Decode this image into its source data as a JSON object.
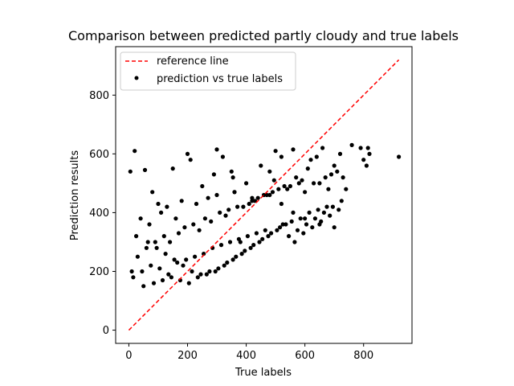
{
  "chart_data": {
    "type": "scatter",
    "title": "Comparison between predicted partly cloudy and true labels",
    "xlabel": "True labels",
    "ylabel": "Prediction results",
    "xlim": [
      -45,
      965
    ],
    "ylim": [
      -45,
      965
    ],
    "xticks": [
      0,
      200,
      400,
      600,
      800
    ],
    "yticks": [
      0,
      200,
      400,
      600,
      800
    ],
    "xtick_labels": [
      "0",
      "200",
      "400",
      "600",
      "800"
    ],
    "ytick_labels": [
      "0",
      "200",
      "400",
      "600",
      "800"
    ],
    "grid": false,
    "legend_position": "top-left",
    "colors": {
      "reference": "#ff0000",
      "points": "#000000"
    },
    "series": [
      {
        "name": "reference line",
        "kind": "line",
        "style": "dashed",
        "x": [
          0,
          920
        ],
        "y": [
          0,
          920
        ]
      },
      {
        "name": "prediction vs true labels",
        "kind": "scatter",
        "x": [
          20,
          5,
          10,
          55,
          80,
          100,
          150,
          160,
          200,
          210,
          250,
          290,
          300,
          320,
          350,
          355,
          360,
          380,
          400,
          450,
          480,
          495,
          500,
          520,
          560,
          570,
          600,
          610,
          620,
          640,
          650,
          660,
          680,
          700,
          720,
          730,
          740,
          760,
          790,
          800,
          810,
          815,
          820,
          920,
          30,
          60,
          90,
          120,
          140,
          170,
          190,
          220,
          240,
          260,
          280,
          310,
          330,
          340,
          370,
          390,
          410,
          420,
          430,
          440,
          460,
          470,
          490,
          510,
          530,
          540,
          550,
          580,
          590,
          630,
          670,
          690,
          710,
          15,
          45,
          75,
          105,
          135,
          165,
          195,
          225,
          255,
          285,
          315,
          345,
          375,
          405,
          435,
          465,
          525,
          555,
          585,
          615,
          645,
          675,
          40,
          70,
          110,
          130,
          180,
          230,
          270,
          300,
          360,
          420,
          480,
          520,
          560,
          600,
          650,
          700,
          25,
          65,
          95,
          125,
          155,
          185,
          215,
          245,
          275,
          305,
          335,
          365,
          395,
          425,
          455,
          485,
          515,
          545,
          575,
          605,
          635,
          665,
          695,
          725,
          50,
          85,
          115,
          145,
          175,
          205,
          235,
          265,
          295,
          325,
          355,
          385,
          415,
          445,
          475,
          505,
          535,
          565,
          595,
          625,
          655,
          685,
          715
        ],
        "y": [
          610,
          540,
          200,
          545,
          470,
          430,
          550,
          380,
          600,
          580,
          490,
          530,
          615,
          590,
          540,
          520,
          470,
          300,
          500,
          560,
          540,
          510,
          610,
          590,
          615,
          520,
          470,
          550,
          580,
          590,
          500,
          620,
          480,
          560,
          600,
          520,
          480,
          630,
          620,
          580,
          560,
          620,
          600,
          590,
          250,
          280,
          300,
          320,
          300,
          330,
          350,
          360,
          340,
          380,
          370,
          400,
          390,
          410,
          420,
          420,
          430,
          440,
          440,
          450,
          460,
          460,
          470,
          480,
          490,
          480,
          490,
          500,
          510,
          500,
          520,
          530,
          540,
          180,
          200,
          220,
          210,
          190,
          230,
          240,
          250,
          260,
          280,
          290,
          300,
          310,
          320,
          330,
          340,
          360,
          370,
          380,
          400,
          410,
          420,
          380,
          360,
          400,
          420,
          440,
          430,
          450,
          460,
          470,
          450,
          460,
          430,
          400,
          380,
          360,
          350,
          320,
          300,
          280,
          260,
          240,
          220,
          200,
          190,
          200,
          210,
          230,
          250,
          270,
          290,
          310,
          330,
          350,
          320,
          340,
          360,
          380,
          400,
          420,
          440,
          150,
          160,
          170,
          180,
          170,
          160,
          180,
          190,
          200,
          220,
          240,
          260,
          280,
          300,
          320,
          340,
          360,
          300,
          330,
          350,
          370,
          390,
          410
        ]
      }
    ],
    "legend": [
      {
        "label": "reference line",
        "marker": "dashed-line"
      },
      {
        "label": "prediction vs true labels",
        "marker": "dot"
      }
    ]
  }
}
